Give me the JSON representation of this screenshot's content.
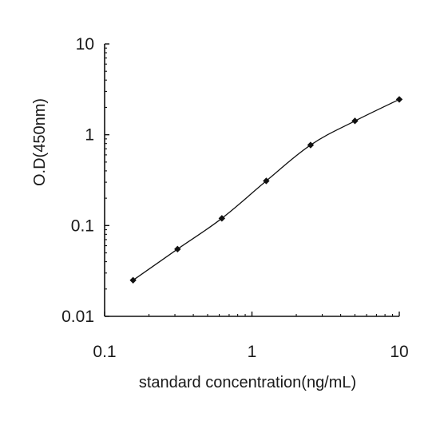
{
  "chart_data": {
    "type": "line",
    "xscale": "log",
    "yscale": "log",
    "xlabel": "standard concentration(ng/mL)",
    "ylabel": "O.D(450nm)",
    "xlim": [
      0.1,
      10
    ],
    "ylim": [
      0.01,
      10
    ],
    "xticks": [
      "0.1",
      "1",
      "10"
    ],
    "yticks": [
      "0.01",
      "0.1",
      "1",
      "10"
    ],
    "grid": false,
    "legend": "none",
    "marker": "diamond",
    "line_color": "#111111",
    "series": [
      {
        "x": [
          0.156,
          0.3125,
          0.625,
          1.25,
          2.5,
          5,
          10
        ],
        "y": [
          0.025,
          0.055,
          0.12,
          0.31,
          0.77,
          1.42,
          2.45
        ]
      }
    ]
  }
}
